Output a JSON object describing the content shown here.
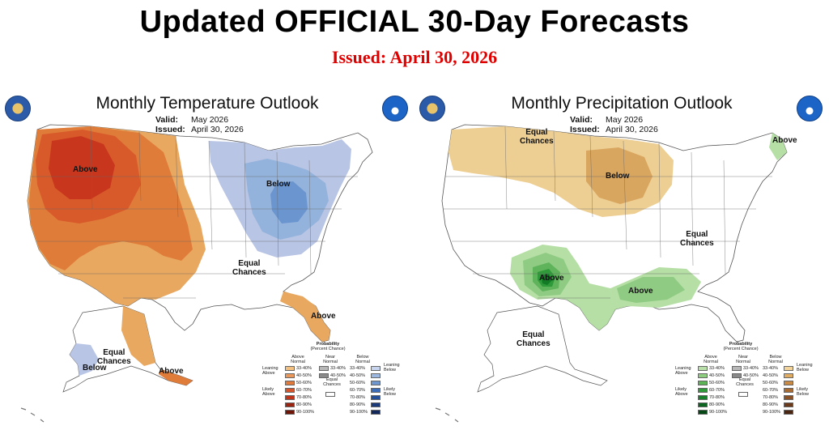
{
  "header": {
    "title": "Updated OFFICIAL 30-Day Forecasts",
    "issued": "Issued: April 30, 2026"
  },
  "temperature": {
    "title": "Monthly Temperature Outlook",
    "valid_label": "Valid:",
    "valid_value": "May 2026",
    "issued_label": "Issued:",
    "issued_value": "April 30, 2026",
    "labels": {
      "above_west": "Above",
      "below_ne": "Below",
      "equal_east_1": "Equal",
      "equal_east_2": "Chances",
      "above_fl": "Above",
      "equal_ak_1": "Equal",
      "equal_ak_2": "Chances",
      "below_ak": "Below",
      "above_ak": "Above"
    },
    "colors": {
      "above_33": "#e8a860",
      "above_40": "#e07c3a",
      "above_50": "#d85a2a",
      "above_60": "#c8371d",
      "below_33": "#b9c5e4",
      "below_40": "#94b3dc",
      "below_50": "#6b95cf"
    }
  },
  "precipitation": {
    "title": "Monthly Precipitation Outlook",
    "valid_label": "Valid:",
    "valid_value": "May 2026",
    "issued_label": "Issued:",
    "issued_value": "April 30, 2026",
    "labels": {
      "equal_nw_1": "Equal",
      "equal_nw_2": "Chances",
      "below_mw": "Below",
      "above_ne": "Above",
      "equal_east_1": "Equal",
      "equal_east_2": "Chances",
      "above_tx": "Above",
      "above_gulf": "Above",
      "equal_ak_1": "Equal",
      "equal_ak_2": "Chances"
    },
    "colors": {
      "below_33": "#eecf93",
      "below_40": "#d9a660",
      "above_33": "#b5dfa5",
      "above_40": "#8fcb83",
      "above_50": "#5fb35a",
      "above_60": "#2f9a3a",
      "above_70": "#137a25"
    }
  },
  "legend_temp": {
    "title_1": "Probability",
    "title_2": "(Percent Chance)",
    "col_above": "Above Normal",
    "col_near": "Near Normal",
    "col_below": "Below Normal",
    "leaning_above": "Leaning Above",
    "likely_above": "Likely Above",
    "leaning_below": "Leaning Below",
    "likely_below": "Likely Below",
    "equal_chances": "Equal Chances",
    "rows": [
      "33-40%",
      "40-50%",
      "50-60%",
      "60-70%",
      "70-80%",
      "80-90%",
      "90-100%"
    ],
    "near_rows": [
      "33-40%",
      "40-50%"
    ],
    "above_colors": [
      "#f2c080",
      "#e9975a",
      "#df7a3c",
      "#d4552b",
      "#bf3319",
      "#9a2410",
      "#6e1507"
    ],
    "below_colors": [
      "#c7d4ee",
      "#9db8e0",
      "#6f96cf",
      "#3d6cb8",
      "#264f9a",
      "#1b3a7a",
      "#13285a"
    ],
    "near_colors": [
      "#b8b8b8",
      "#8a8a8a"
    ]
  },
  "legend_precip": {
    "title_1": "Probability",
    "title_2": "(Percent Chance)",
    "col_above": "Above Normal",
    "col_near": "Near Normal",
    "col_below": "Below Normal",
    "leaning_above": "Leaning Above",
    "likely_above": "Likely Above",
    "leaning_below": "Leaning Below",
    "likely_below": "Likely Below",
    "equal_chances": "Equal Chances",
    "rows": [
      "33-40%",
      "40-50%",
      "50-60%",
      "60-70%",
      "70-80%",
      "80-90%",
      "90-100%"
    ],
    "near_rows": [
      "33-40%",
      "40-50%"
    ],
    "above_colors": [
      "#b9e0a8",
      "#8ccd7e",
      "#5cb457",
      "#2f9a3a",
      "#16812a",
      "#0b6420",
      "#064716"
    ],
    "below_colors": [
      "#f3d49b",
      "#e0ac64",
      "#c98a45",
      "#a96b34",
      "#8a5026",
      "#6a3a1b",
      "#4a2612"
    ],
    "near_colors": [
      "#b8b8b8",
      "#8a8a8a"
    ]
  }
}
